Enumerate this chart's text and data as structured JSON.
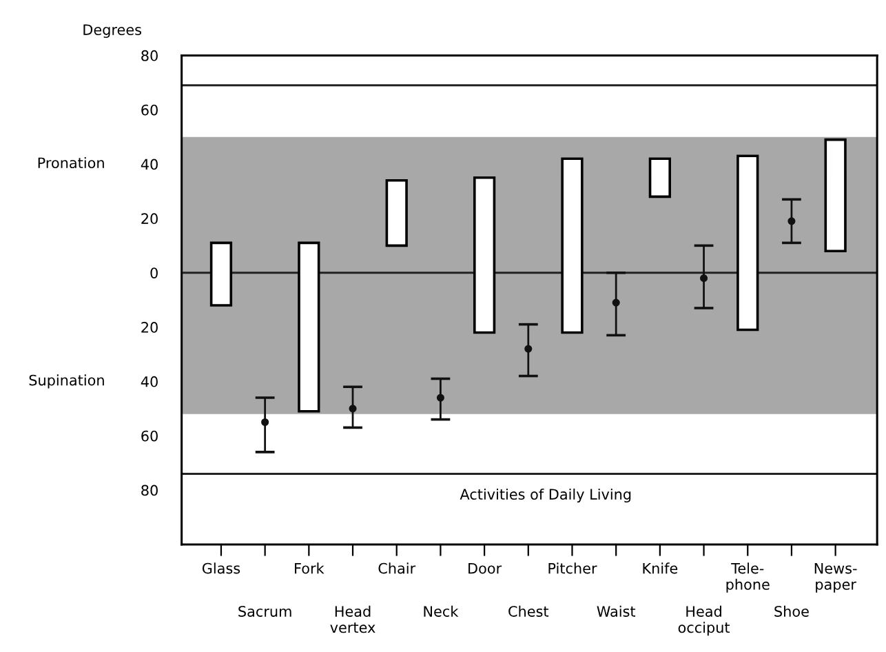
{
  "chart_data": {
    "type": "bar",
    "ylabel": "Degrees",
    "categories": [
      "Glass",
      "Sacrum",
      "Fork",
      "Head\nvertex",
      "Chair",
      "Neck",
      "Door",
      "Chest",
      "Pitcher",
      "Waist",
      "Knife",
      "Head\nocciput",
      "Tele-\nphone",
      "Shoe",
      "News-\npaper"
    ],
    "series": [
      {
        "color": "#ffffff",
        "values": [
          23,
          null,
          62,
          null,
          24,
          null,
          57,
          null,
          64,
          null,
          14,
          null,
          64,
          null,
          41
        ],
        "base": [
          -12,
          null,
          -51,
          null,
          10,
          null,
          -22,
          null,
          -22,
          null,
          28,
          null,
          -21,
          null,
          8
        ]
      },
      {
        "type": "scatter",
        "color": "#111111",
        "values": [
          null,
          -55,
          null,
          -50,
          null,
          -46,
          null,
          -28,
          null,
          -11,
          null,
          -2,
          null,
          19,
          null
        ],
        "errors": [
          null,
          [
            -66,
            -46
          ],
          null,
          [
            -57,
            -42
          ],
          null,
          [
            -54,
            -39
          ],
          null,
          [
            -38,
            -19
          ],
          null,
          [
            -23,
            0
          ],
          null,
          [
            -13,
            10
          ],
          null,
          [
            11,
            27
          ],
          null
        ]
      }
    ],
    "ylim": [
      -100,
      80
    ],
    "yticks": [
      80,
      60,
      40,
      20,
      0,
      {
        "value": -20,
        "label": "20"
      },
      {
        "value": -40,
        "label": "40"
      },
      {
        "value": -60,
        "label": "60"
      },
      {
        "value": -80,
        "label": "80"
      }
    ],
    "bands": [
      {
        "axis": "y",
        "from": -52,
        "to": 50,
        "color": "#a8a8a8"
      }
    ],
    "ref_lines": [
      {
        "axis": "y",
        "value": 0,
        "color": "#222222"
      },
      {
        "axis": "y",
        "value": 69,
        "color": "#222222"
      },
      {
        "axis": "y",
        "value": -74,
        "color": "#222222"
      }
    ],
    "annotations": [
      "Activities of Daily Living",
      "Pronation",
      "Supination"
    ],
    "grid": false,
    "legend": false
  }
}
